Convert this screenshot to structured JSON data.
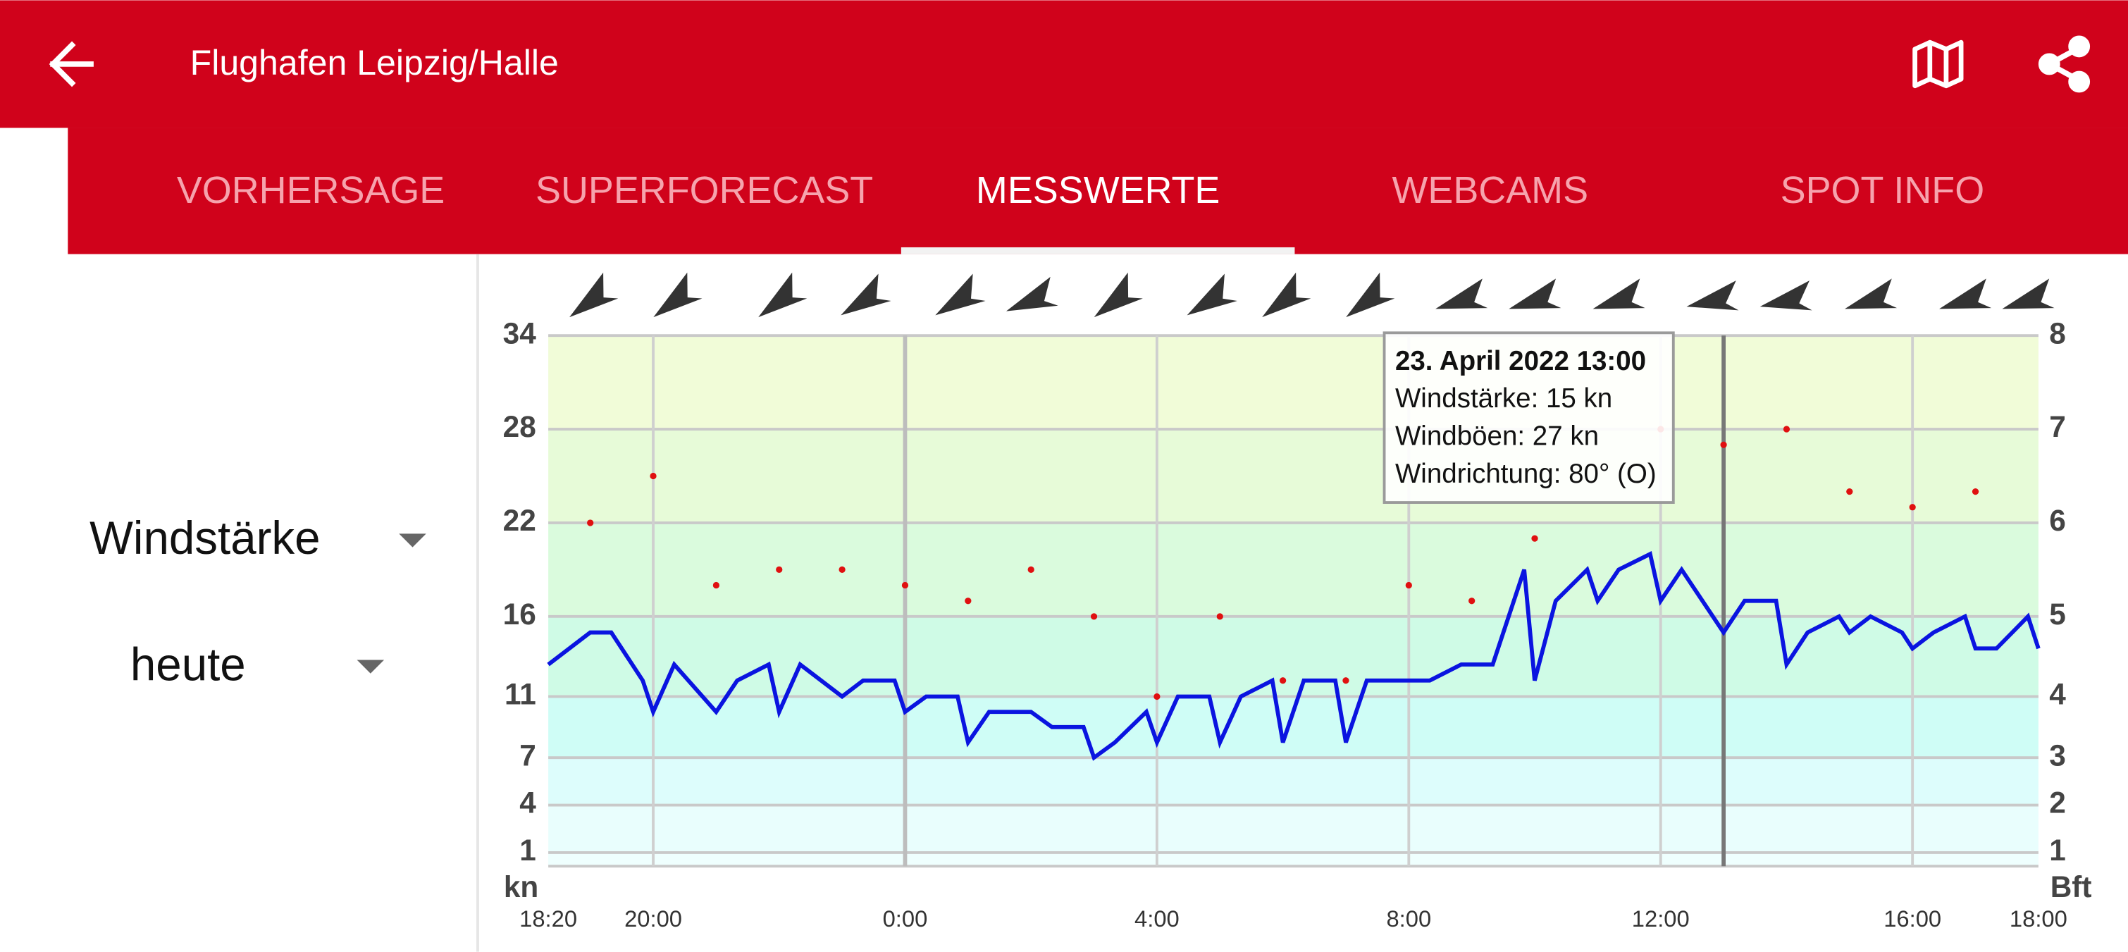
{
  "header": {
    "title": "Flughafen Leipzig/Halle"
  },
  "tabs": {
    "labels": [
      "VORHERSAGE",
      "SUPERFORECAST",
      "MESSWERTE",
      "WEBCAMS",
      "SPOT INFO"
    ],
    "active": 2
  },
  "selectors": [
    "Windstärke",
    "heute"
  ],
  "chart_data": {
    "type": "line",
    "ylabel": "kn",
    "y2label": "Bft",
    "ylim": [
      0,
      34
    ],
    "yticks": [
      1,
      4,
      7,
      11,
      16,
      22,
      28,
      34
    ],
    "y2lim": [
      0,
      8
    ],
    "y2ticks": [
      1,
      2,
      3,
      4,
      5,
      6,
      7,
      8
    ],
    "xlim": [
      "18:20",
      "18:00"
    ],
    "xticks": [
      "18:20",
      "20:00",
      "0:00",
      "4:00",
      "8:00",
      "12:00",
      "16:00",
      "18:00"
    ],
    "grid": true,
    "series": [
      {
        "color": "#0a14e0",
        "x": [
          "18:20",
          "19:00",
          "19:20",
          "19:50",
          "20:00",
          "20:20",
          "21:00",
          "21:20",
          "21:50",
          "22:00",
          "22:20",
          "23:00",
          "23:20",
          "23:50",
          "0:00",
          "0:20",
          "0:50",
          "1:00",
          "1:20",
          "2:00",
          "2:20",
          "2:50",
          "3:00",
          "3:20",
          "3:50",
          "4:00",
          "4:20",
          "4:50",
          "5:00",
          "5:20",
          "5:50",
          "6:00",
          "6:20",
          "6:50",
          "7:00",
          "7:20",
          "8:20",
          "8:50",
          "9:20",
          "9:50",
          "10:00",
          "10:20",
          "10:50",
          "11:00",
          "11:20",
          "11:50",
          "12:00",
          "12:20",
          "13:00",
          "13:20",
          "13:50",
          "14:00",
          "14:20",
          "14:50",
          "15:00",
          "15:20",
          "15:50",
          "16:00",
          "16:20",
          "16:50",
          "17:00",
          "17:20",
          "17:50",
          "18:00"
        ],
        "values": [
          13,
          15,
          15,
          12,
          10,
          13,
          10,
          12,
          13,
          10,
          13,
          11,
          12,
          12,
          10,
          11,
          11,
          8,
          10,
          10,
          9,
          9,
          7,
          8,
          10,
          8,
          11,
          11,
          8,
          11,
          12,
          8,
          12,
          12,
          8,
          12,
          12,
          13,
          13,
          19,
          12,
          17,
          19,
          17,
          19,
          20,
          17,
          19,
          15,
          17,
          17,
          13,
          15,
          16,
          15,
          16,
          15,
          14,
          15,
          16,
          14,
          14,
          16,
          14
        ]
      },
      {
        "color": "#e01010",
        "x": [
          "19:00",
          "20:00",
          "21:00",
          "22:00",
          "23:00",
          "0:00",
          "1:00",
          "2:00",
          "3:00",
          "4:00",
          "5:00",
          "6:00",
          "7:00",
          "8:00",
          "9:00",
          "10:00",
          "12:00",
          "13:00",
          "14:00",
          "15:00",
          "16:00",
          "17:00"
        ],
        "values": [
          22,
          25,
          18,
          19,
          19,
          18,
          17,
          19,
          16,
          11,
          16,
          12,
          12,
          18,
          17,
          21,
          28,
          27,
          28,
          24,
          23,
          24
        ]
      }
    ],
    "wind_direction": {
      "x": [
        "19:00",
        "20:20",
        "22:00",
        "23:20",
        "0:50",
        "2:00",
        "3:20",
        "4:50",
        "6:00",
        "7:20",
        "8:50",
        "10:00",
        "11:20",
        "12:50",
        "14:00",
        "15:20",
        "16:50",
        "17:50"
      ],
      "values": [
        60,
        60,
        60,
        65,
        65,
        75,
        60,
        65,
        60,
        60,
        80,
        80,
        80,
        85,
        85,
        80,
        80,
        80
      ]
    },
    "tooltip": {
      "x": "13:00",
      "lines": [
        "23. April 2022 13:00",
        "Windstärke: 15 kn",
        "Windböen: 27 kn",
        "Windrichtung: 80° (O)"
      ]
    }
  }
}
